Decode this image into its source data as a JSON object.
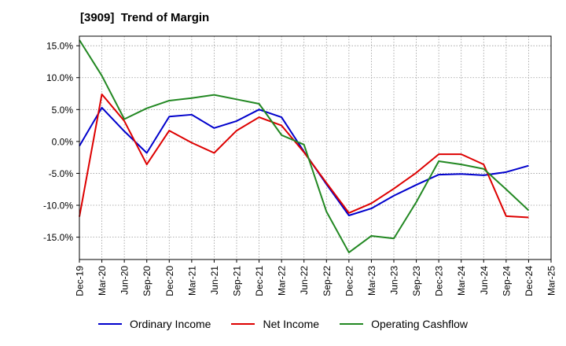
{
  "title": "[3909]  Trend of Margin",
  "chart_data": {
    "type": "line",
    "title": "[3909]  Trend of Margin",
    "xlabel": "",
    "ylabel": "",
    "ylim": [
      -18.5,
      16.5
    ],
    "yticks": [
      15,
      10,
      5,
      0,
      -5,
      -10,
      -15
    ],
    "ytick_labels": [
      "15.0%",
      "10.0%",
      "5.0%",
      "0.0%",
      "-5.0%",
      "-10.0%",
      "-15.0%"
    ],
    "x_tick_labels": [
      "Dec-19",
      "Mar-20",
      "Jun-20",
      "Sep-20",
      "Dec-20",
      "Mar-21",
      "Jun-21",
      "Sep-21",
      "Dec-21",
      "Mar-22",
      "Jun-22",
      "Sep-22",
      "Dec-22",
      "Mar-23",
      "Jun-23",
      "Sep-23",
      "Dec-23",
      "Mar-24",
      "Jun-24",
      "Sep-24",
      "Dec-24",
      "Mar-25"
    ],
    "x": [
      "Dec-19",
      "Mar-20",
      "Jun-20",
      "Sep-20",
      "Dec-20",
      "Mar-21",
      "Jun-21",
      "Sep-21",
      "Dec-21",
      "Mar-22",
      "Jun-22",
      "Sep-22",
      "Dec-22",
      "Mar-23",
      "Jun-23",
      "Sep-23",
      "Dec-23",
      "Mar-24",
      "Jun-24",
      "Sep-24",
      "Dec-24"
    ],
    "grid": true,
    "legend_position": "bottom",
    "series": [
      {
        "name": "Ordinary Income",
        "color": "#0000cc",
        "values": [
          -0.7,
          5.3,
          1.6,
          -1.8,
          3.9,
          4.2,
          2.1,
          3.2,
          5.0,
          3.8,
          -1.6,
          -6.7,
          -11.6,
          -10.5,
          -8.5,
          -6.8,
          -5.2,
          -5.1,
          -5.3,
          -4.8,
          -3.8
        ]
      },
      {
        "name": "Net Income",
        "color": "#dd0000",
        "values": [
          -11.8,
          7.4,
          3.2,
          -3.6,
          1.7,
          -0.2,
          -1.8,
          1.7,
          3.8,
          2.5,
          -1.7,
          -6.5,
          -11.2,
          -9.7,
          -7.4,
          -4.9,
          -2.0,
          -2.0,
          -3.6,
          -11.7,
          -11.9
        ]
      },
      {
        "name": "Operating Cashflow",
        "color": "#228822",
        "values": [
          15.9,
          10.3,
          3.5,
          5.2,
          6.4,
          6.8,
          7.3,
          6.6,
          5.9,
          1.0,
          -0.5,
          -11.0,
          -17.4,
          -14.8,
          -15.2,
          -9.5,
          -3.1,
          -3.6,
          -4.3,
          -7.5,
          -10.8
        ]
      }
    ]
  }
}
